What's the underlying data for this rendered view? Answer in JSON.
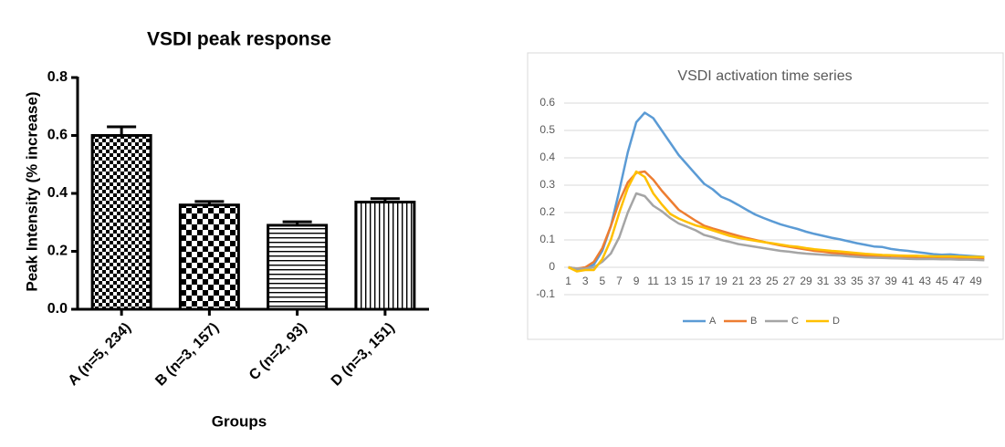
{
  "chart_data": [
    {
      "type": "bar",
      "title": "VSDI peak response",
      "x_label": "Groups",
      "y_label": "Peak  Intensity (% increase)",
      "categories": [
        "A (n=5, 234)",
        "B (n=3, 157)",
        "C (n=2, 93)",
        "D (n=3, 151)"
      ],
      "values": [
        0.6,
        0.36,
        0.29,
        0.37
      ],
      "errors": [
        0.03,
        0.012,
        0.012,
        0.012
      ],
      "patterns": [
        "checker-small",
        "checker-large",
        "horizontal",
        "vertical"
      ],
      "color": "#000000",
      "ylim": [
        0,
        0.8
      ],
      "yticks": [
        {
          "value": 0,
          "label": "0.0"
        },
        0.2,
        0.4,
        0.6,
        0.8
      ]
    },
    {
      "type": "line",
      "title": "VSDI activation time series",
      "x": [
        1,
        2,
        3,
        4,
        5,
        6,
        7,
        8,
        9,
        10,
        11,
        12,
        13,
        14,
        15,
        16,
        17,
        18,
        19,
        20,
        21,
        22,
        23,
        24,
        25,
        26,
        27,
        28,
        29,
        30,
        31,
        32,
        33,
        34,
        35,
        36,
        37,
        38,
        39,
        40,
        41,
        42,
        43,
        44,
        45,
        46,
        47,
        48,
        49,
        50
      ],
      "xlim": [
        0.5,
        50.5
      ],
      "xticks": [
        1,
        3,
        5,
        7,
        9,
        11,
        13,
        15,
        17,
        19,
        21,
        23,
        25,
        27,
        29,
        31,
        33,
        35,
        37,
        39,
        41,
        43,
        45,
        47,
        49
      ],
      "ylim": [
        -0.1,
        0.6
      ],
      "yticks": [
        -0.1,
        0,
        0.1,
        0.2,
        0.3,
        0.4,
        0.5,
        0.6
      ],
      "grid": true,
      "legend": "bottom",
      "series": [
        {
          "name": "A",
          "color": "#5b9bd5",
          "values": [
            0,
            -0.01,
            -0.005,
            0.01,
            0.06,
            0.15,
            0.28,
            0.42,
            0.53,
            0.565,
            0.545,
            0.5,
            0.455,
            0.41,
            0.375,
            0.34,
            0.305,
            0.285,
            0.258,
            0.245,
            0.228,
            0.21,
            0.193,
            0.18,
            0.168,
            0.157,
            0.148,
            0.14,
            0.13,
            0.122,
            0.115,
            0.108,
            0.102,
            0.095,
            0.088,
            0.082,
            0.076,
            0.074,
            0.067,
            0.063,
            0.06,
            0.056,
            0.052,
            0.048,
            0.046,
            0.047,
            0.044,
            0.042,
            0.04,
            0.038
          ]
        },
        {
          "name": "B",
          "color": "#ed7d31",
          "values": [
            0,
            -0.005,
            0,
            0.02,
            0.07,
            0.15,
            0.24,
            0.31,
            0.345,
            0.35,
            0.32,
            0.28,
            0.245,
            0.21,
            0.19,
            0.17,
            0.152,
            0.142,
            0.133,
            0.124,
            0.115,
            0.107,
            0.1,
            0.093,
            0.086,
            0.08,
            0.075,
            0.07,
            0.065,
            0.06,
            0.057,
            0.053,
            0.05,
            0.048,
            0.045,
            0.043,
            0.04,
            0.038,
            0.036,
            0.035,
            0.034,
            0.034,
            0.033,
            0.033,
            0.032,
            0.032,
            0.031,
            0.031,
            0.03,
            0.03
          ]
        },
        {
          "name": "C",
          "color": "#a5a5a5",
          "values": [
            0,
            -0.005,
            -0.005,
            0,
            0.02,
            0.05,
            0.11,
            0.2,
            0.27,
            0.26,
            0.225,
            0.205,
            0.18,
            0.16,
            0.148,
            0.135,
            0.118,
            0.11,
            0.1,
            0.093,
            0.085,
            0.08,
            0.075,
            0.07,
            0.065,
            0.06,
            0.057,
            0.053,
            0.05,
            0.048,
            0.046,
            0.044,
            0.043,
            0.04,
            0.038,
            0.036,
            0.035,
            0.034,
            0.033,
            0.032,
            0.031,
            0.03,
            0.03,
            0.03,
            0.029,
            0.029,
            0.028,
            0.028,
            0.027,
            0.026
          ]
        },
        {
          "name": "D",
          "color": "#ffc000",
          "values": [
            0,
            -0.015,
            -0.01,
            -0.01,
            0.03,
            0.1,
            0.2,
            0.29,
            0.35,
            0.33,
            0.27,
            0.23,
            0.195,
            0.178,
            0.165,
            0.153,
            0.145,
            0.135,
            0.125,
            0.115,
            0.108,
            0.102,
            0.097,
            0.092,
            0.088,
            0.083,
            0.078,
            0.075,
            0.07,
            0.066,
            0.063,
            0.06,
            0.058,
            0.055,
            0.052,
            0.049,
            0.047,
            0.045,
            0.044,
            0.043,
            0.042,
            0.042,
            0.041,
            0.04,
            0.04,
            0.04,
            0.039,
            0.038,
            0.038,
            0.037
          ]
        }
      ]
    }
  ]
}
